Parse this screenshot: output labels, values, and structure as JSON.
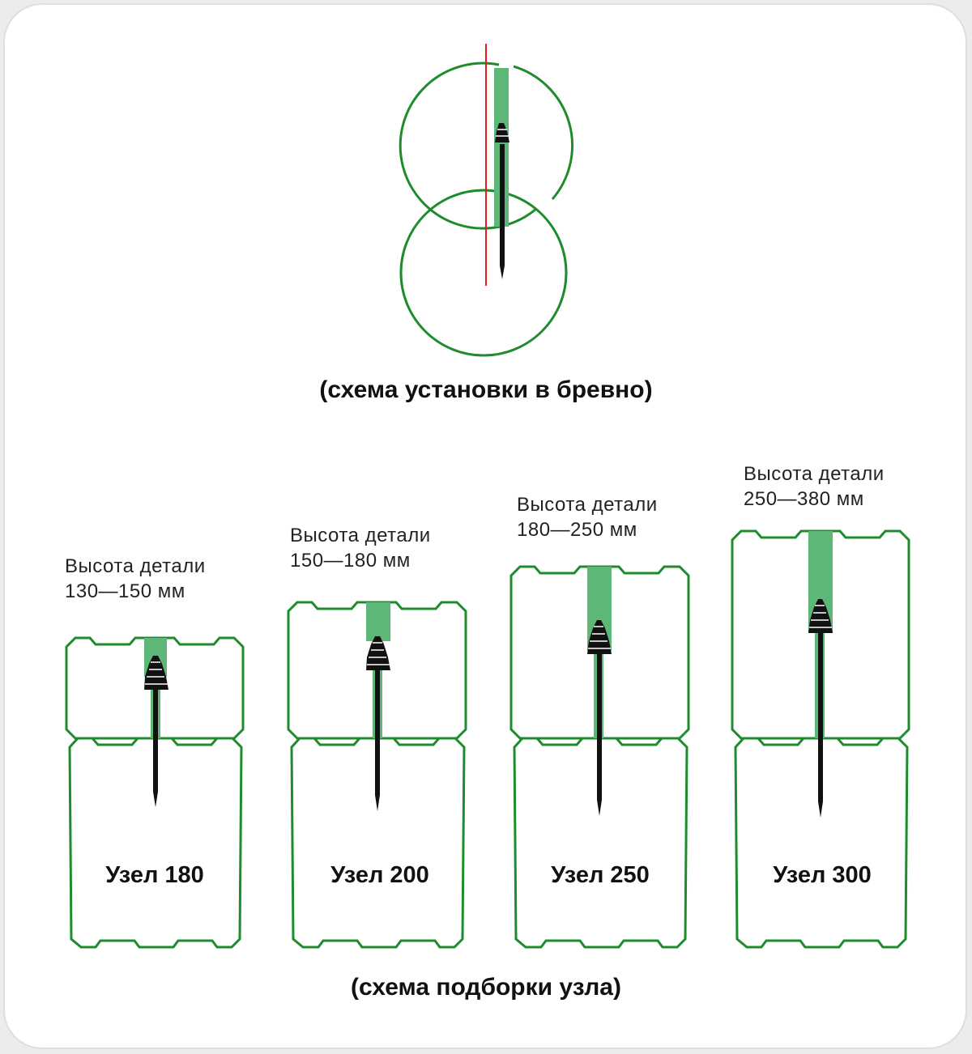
{
  "diagram": {
    "colors": {
      "outline": "#1e8c2c",
      "fill": "#5db878",
      "pin": "#111111",
      "axis": "#e21b1b",
      "text": "#111111"
    },
    "install_scheme": {
      "caption": "(схема установки в бревно)"
    },
    "selection_scheme": {
      "caption": "(схема подборки узла)",
      "nodes": [
        {
          "name": "Узел 180",
          "height_label": "Высота детали",
          "height_range": "130—150 мм"
        },
        {
          "name": "Узел 200",
          "height_label": "Высота детали",
          "height_range": "150—180 мм"
        },
        {
          "name": "Узел 250",
          "height_label": "Высота детали",
          "height_range": "180—250 мм"
        },
        {
          "name": "Узел 300",
          "height_label": "Высота детали",
          "height_range": "250—380 мм"
        }
      ]
    }
  }
}
